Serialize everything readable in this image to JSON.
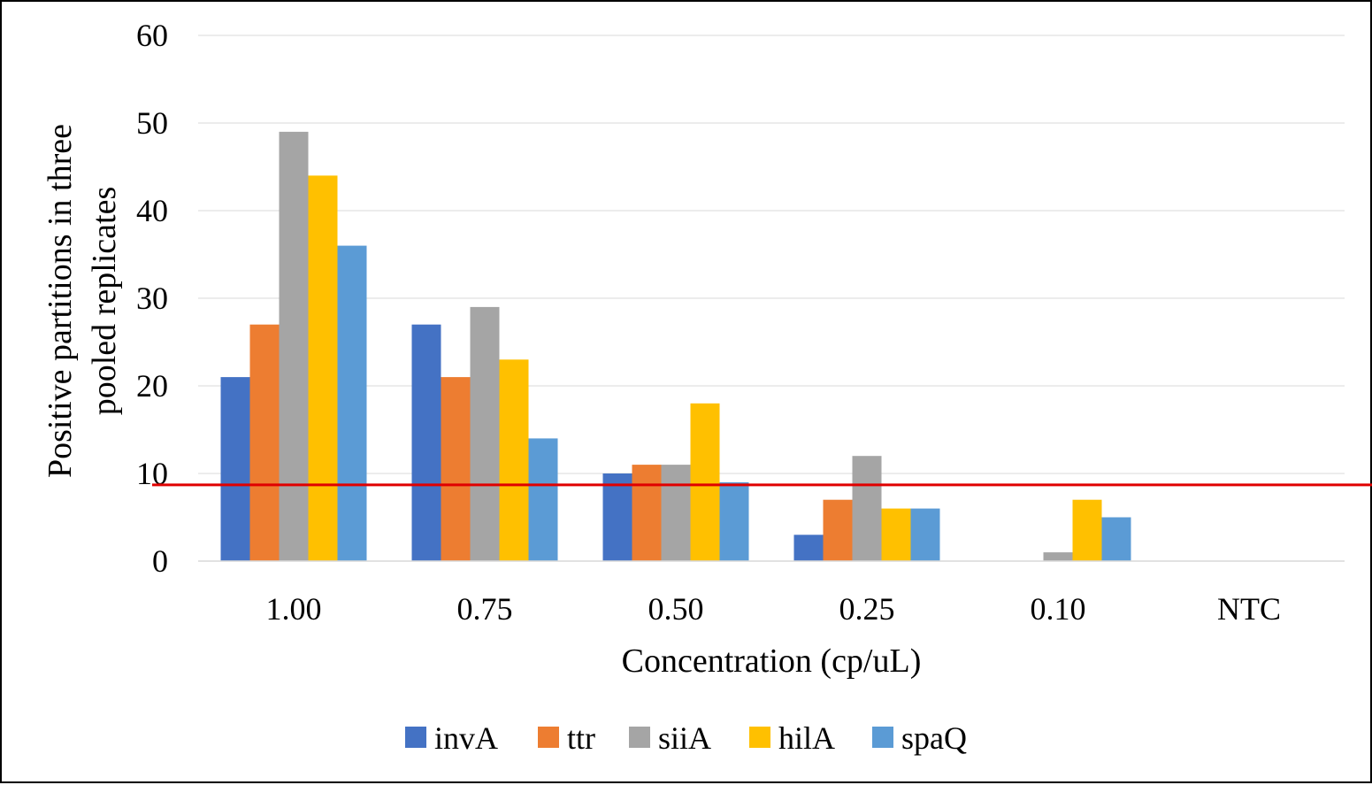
{
  "chart_data": {
    "type": "bar",
    "title": "",
    "xlabel": "Concentration (cp/uL)",
    "ylabel_lines": [
      "Positive partitions in three",
      "pooled replicates"
    ],
    "categories": [
      "1.00",
      "0.75",
      "0.50",
      "0.25",
      "0.10",
      "NTC"
    ],
    "yticks": [
      "0",
      "10",
      "20",
      "30",
      "40",
      "50",
      "60"
    ],
    "ylim": [
      0,
      60
    ],
    "grid": true,
    "legend_position": "bottom",
    "series": [
      {
        "name": "invA",
        "color": "#4472C4",
        "values": [
          21,
          27,
          10,
          3,
          0,
          0
        ]
      },
      {
        "name": "ttr",
        "color": "#ED7D31",
        "values": [
          27,
          21,
          11,
          7,
          0,
          0
        ]
      },
      {
        "name": "siiA",
        "color": "#A5A5A5",
        "values": [
          49,
          29,
          11,
          12,
          1,
          0
        ]
      },
      {
        "name": "hilA",
        "color": "#FFC000",
        "values": [
          44,
          23,
          18,
          6,
          7,
          0
        ]
      },
      {
        "name": "spaQ",
        "color": "#5B9BD5",
        "values": [
          36,
          14,
          9,
          6,
          5,
          0
        ]
      }
    ],
    "threshold": {
      "value": 8.7,
      "color": "#E00000"
    }
  }
}
